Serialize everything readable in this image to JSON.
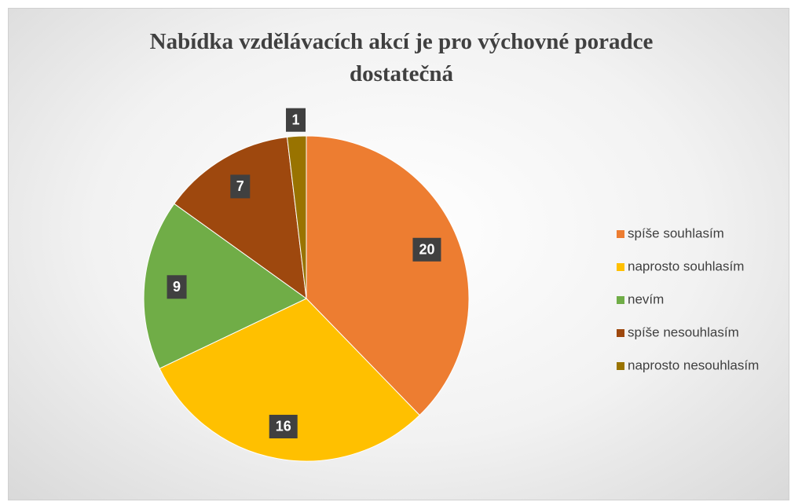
{
  "chart_data": {
    "type": "pie",
    "title": "Nabídka vzdělávacích akcí je pro výchovné poradce dostatečná",
    "categories": [
      "spíše souhlasím",
      "naprosto souhlasím",
      "nevím",
      "spíše nesouhlasím",
      "naprosto nesouhlasím"
    ],
    "values": [
      20,
      16,
      9,
      7,
      1
    ],
    "colors": [
      "#ED7D31",
      "#FFC000",
      "#70AD47",
      "#9E480E",
      "#997300"
    ],
    "legend": "right"
  }
}
